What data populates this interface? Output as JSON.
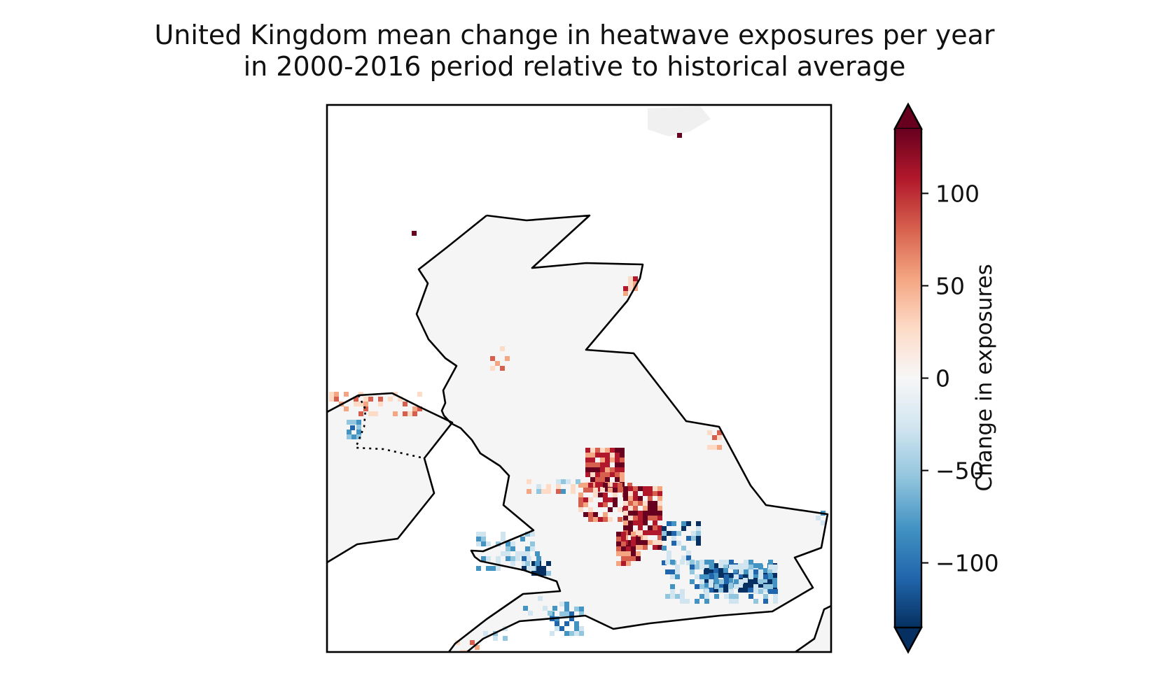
{
  "title": {
    "line1": "United Kingdom mean change in heatwave exposures per year",
    "line2": "in 2000-2016 period relative to historical average"
  },
  "colorbar": {
    "label": "Change in exposures",
    "ticks": [
      {
        "value": 100,
        "label": "100"
      },
      {
        "value": 50,
        "label": "50"
      },
      {
        "value": 0,
        "label": "0"
      },
      {
        "value": -50,
        "label": "−50"
      },
      {
        "value": -100,
        "label": "−100"
      }
    ],
    "vmin": -135,
    "vmax": 135,
    "extend": "both",
    "colormap": "RdBu_r",
    "colors": [
      "#053061",
      "#2166ac",
      "#4393c3",
      "#92c5de",
      "#d1e5f0",
      "#f7f7f7",
      "#fddbc7",
      "#f4a582",
      "#d6604d",
      "#b2182b",
      "#67001f"
    ]
  },
  "map": {
    "region": "United Kingdom",
    "borders": "coastlines",
    "land_color": "#f5f5f5",
    "coast_color": "#000000"
  }
}
